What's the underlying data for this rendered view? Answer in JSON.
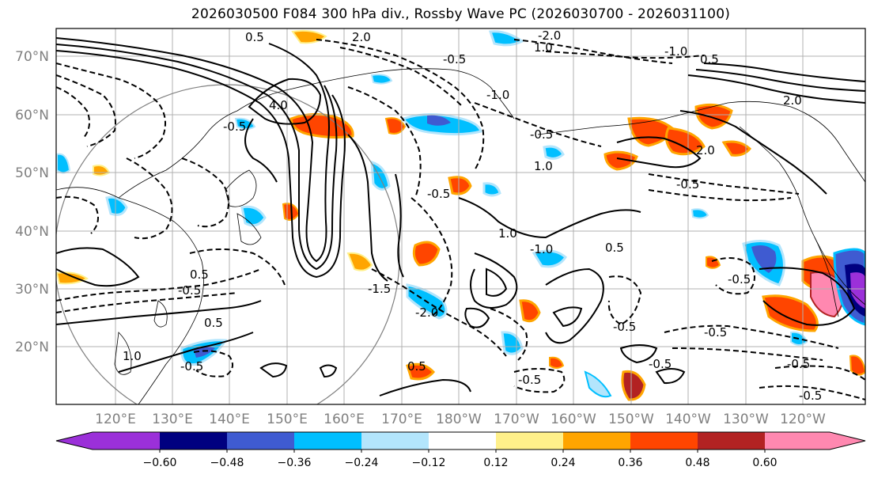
{
  "title": "2026030500 F084 300 hPa div., Rossby Wave PC (2026030700 - 2026031100)",
  "axes": {
    "lat_labels": [
      "70°N",
      "60°N",
      "50°N",
      "40°N",
      "30°N",
      "20°N"
    ],
    "lon_labels": [
      "120°E",
      "130°E",
      "140°E",
      "150°E",
      "160°E",
      "170°E",
      "180°W",
      "170°W",
      "160°W",
      "150°W",
      "140°W",
      "130°W",
      "120°W"
    ]
  },
  "colorbar": {
    "ticks": [
      "−0.60",
      "−0.48",
      "−0.36",
      "−0.24",
      "−0.12",
      "0.12",
      "0.24",
      "0.36",
      "0.48",
      "0.60"
    ],
    "colors": {
      "under": "#9b30d9",
      "b1": "#000080",
      "b2": "#3f5bd1",
      "b3": "#00bfff",
      "b4": "#b3e5fc",
      "b5": "#ffffff",
      "b6": "#fff08a",
      "b7": "#ffa500",
      "b8": "#ff4500",
      "b9": "#b22222",
      "over": "#ff88b0"
    }
  },
  "contour_labels": {
    "l1": "0.5",
    "l2": "2.0",
    "l3": "-0.5",
    "l4": "1.0",
    "l5": "-2.0",
    "l6": "-1.0",
    "l7": "4.0",
    "l8": "-0.5",
    "l9": "-0.5",
    "l10": "0.5",
    "l11": "2.0",
    "l12": "-1.0",
    "l13": "1.0",
    "l14": "-0.5",
    "l15": "0.5",
    "l16": "-0.5",
    "l17": "-0.5",
    "l18": "0.5",
    "l19": "-0.5",
    "l20": "0.5",
    "l21": "-0.5",
    "l22": "-0.5",
    "l23": "-0.5",
    "l24": "-0.5",
    "l25": "0.5",
    "l26": "-1.5",
    "l27": "-0.5",
    "l28": "1.0",
    "l29": "-1.0",
    "l30": "-0.5",
    "l31": "-2.0",
    "l32": "2.0",
    "l33": "1.0",
    "l34": "-0.5"
  }
}
